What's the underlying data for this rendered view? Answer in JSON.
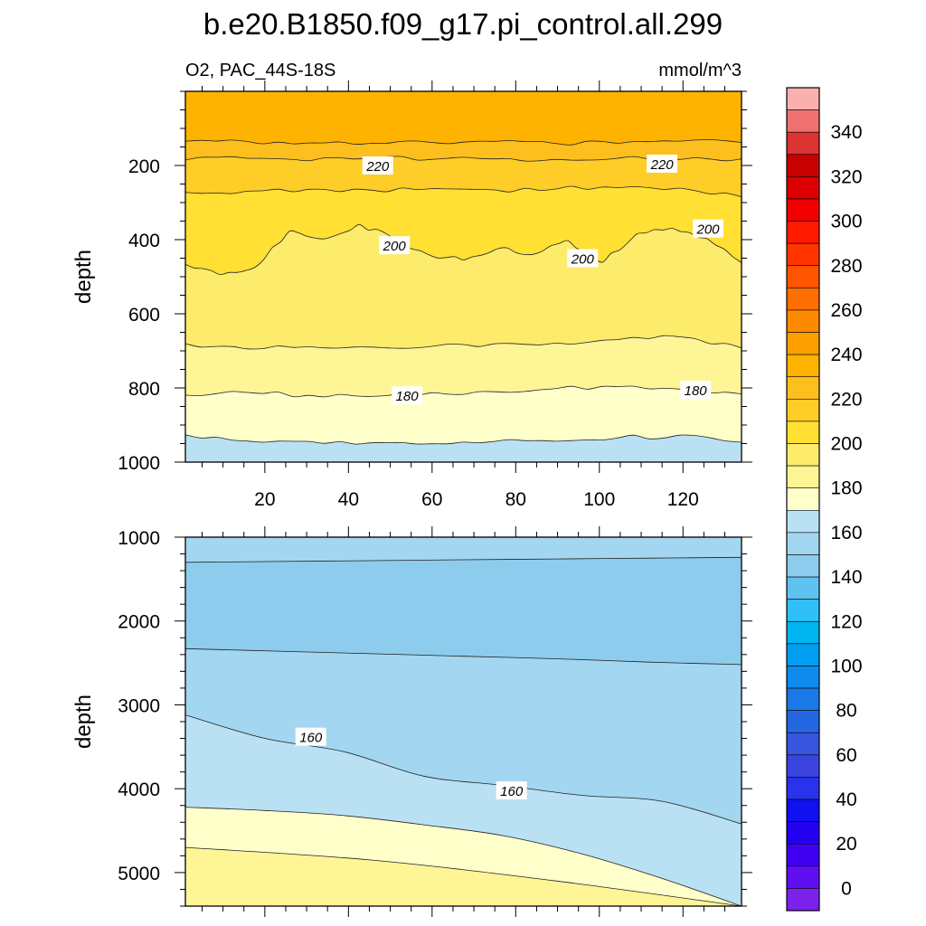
{
  "header": {
    "title": "b.e20.B1850.f09_g17.pi_control.all.299",
    "left_subtitle": "O2, PAC_44S-18S",
    "right_subtitle": "mmol/m^3"
  },
  "chart_data": [
    {
      "type": "contour",
      "panel": "upper",
      "ylabel": "depth",
      "y_inverted": true,
      "xlim": [
        1,
        134
      ],
      "ylim": [
        0,
        1000
      ],
      "x_ticks": [
        20,
        40,
        60,
        80,
        100,
        120
      ],
      "y_ticks": [
        200,
        400,
        600,
        800,
        1000
      ],
      "fill_layers": [
        {
          "level": ">230",
          "color": "#fdb300",
          "depth": [
            0,
            0
          ]
        },
        {
          "level": "220-230",
          "color": "#fdbf1d",
          "depth": [
            138,
            137,
            139,
            136,
            135,
            138,
            136,
            137,
            135,
            134
          ]
        },
        {
          "level": "210-220",
          "color": "#fecd28",
          "depth": [
            182,
            181,
            183,
            180,
            182,
            184,
            181,
            180,
            182,
            183
          ]
        },
        {
          "level": "200-210",
          "color": "#ffe033",
          "depth": [
            272,
            268,
            265,
            270,
            264,
            266,
            268,
            263,
            262,
            280
          ]
        },
        {
          "level": "190-200",
          "color": "#fdeb6c",
          "depth": [
            470,
            495,
            470,
            375,
            400,
            360,
            400,
            440,
            450,
            420,
            440,
            400,
            460,
            380,
            370,
            400,
            460
          ]
        },
        {
          "level": "180-190",
          "color": "#fef597",
          "depth": [
            680,
            690,
            685,
            690,
            685,
            680,
            675,
            670,
            665,
            690
          ]
        },
        {
          "level": "170-180",
          "color": "#ffffca",
          "depth": [
            820,
            815,
            818,
            820,
            815,
            810,
            805,
            800,
            805,
            820
          ]
        },
        {
          "level": "160-170",
          "color": "#b9e1f3",
          "depth": [
            930,
            945,
            948,
            945,
            950,
            945,
            940,
            935,
            930,
            948
          ]
        }
      ],
      "contour_labels": [
        {
          "text": "220",
          "x": 47,
          "depth": 200
        },
        {
          "text": "220",
          "x": 115,
          "depth": 195
        },
        {
          "text": "200",
          "x": 51,
          "depth": 415
        },
        {
          "text": "200",
          "x": 96,
          "depth": 450
        },
        {
          "text": "200",
          "x": 126,
          "depth": 370
        },
        {
          "text": "180",
          "x": 54,
          "depth": 820
        },
        {
          "text": "180",
          "x": 123,
          "depth": 805
        }
      ]
    },
    {
      "type": "contour",
      "panel": "lower",
      "ylabel": "depth",
      "y_inverted": true,
      "xlim": [
        1,
        134
      ],
      "ylim": [
        1000,
        5400
      ],
      "y_ticks": [
        1000,
        2000,
        3000,
        4000,
        5000
      ],
      "fill_layers": [
        {
          "level": "150-160 (top)",
          "color": "#a3d6f0",
          "depth": [
            1000,
            1000
          ]
        },
        {
          "level": "140-150",
          "color": "#8dccec",
          "depth": [
            1300,
            1290,
            1280,
            1270,
            1260,
            1250,
            1240
          ]
        },
        {
          "level": "150-160",
          "color": "#a3d6f0",
          "depth": [
            2330,
            2360,
            2390,
            2420,
            2450,
            2490,
            2520
          ]
        },
        {
          "level": "160-170",
          "color": "#b9e1f3",
          "depth": [
            3120,
            3400,
            3560,
            3850,
            3960,
            4080,
            4150,
            4420
          ]
        },
        {
          "level": "170-180",
          "color": "#ffffca",
          "depth": [
            4220,
            4260,
            4320,
            4430,
            4560,
            4780,
            5070,
            5400
          ]
        },
        {
          "level": "180-190",
          "color": "#fef597",
          "depth": [
            4700,
            4850,
            5100,
            5400
          ]
        }
      ],
      "contour_labels": [
        {
          "text": "160",
          "x": 31,
          "depth": 3380
        },
        {
          "text": "160",
          "x": 79,
          "depth": 4020
        }
      ]
    }
  ],
  "colorbar": {
    "labels": [
      "340",
      "320",
      "300",
      "280",
      "260",
      "240",
      "220",
      "200",
      "180",
      "160",
      "140",
      "120",
      "100",
      "80",
      "60",
      "40",
      "20",
      "0"
    ],
    "colors": [
      "#fbb0b0",
      "#ee7070",
      "#dc3333",
      "#c80000",
      "#dc0000",
      "#f00000",
      "#ff1a00",
      "#ff3500",
      "#ff5500",
      "#fe6f00",
      "#fe8a00",
      "#fe9f00",
      "#fdb300",
      "#fdbf1d",
      "#fecd28",
      "#ffe033",
      "#fdeb6c",
      "#fef597",
      "#ffffca",
      "#b9e1f3",
      "#a3d6f0",
      "#8dccec",
      "#5fc3f2",
      "#2ec0f7",
      "#00b4f0",
      "#009ef0",
      "#0e8bec",
      "#1a79e6",
      "#2467e1",
      "#3756dd",
      "#3b44e0",
      "#2a33ec",
      "#1010f0",
      "#2300f0",
      "#4000f0",
      "#6010f0",
      "#7a22ec"
    ]
  }
}
